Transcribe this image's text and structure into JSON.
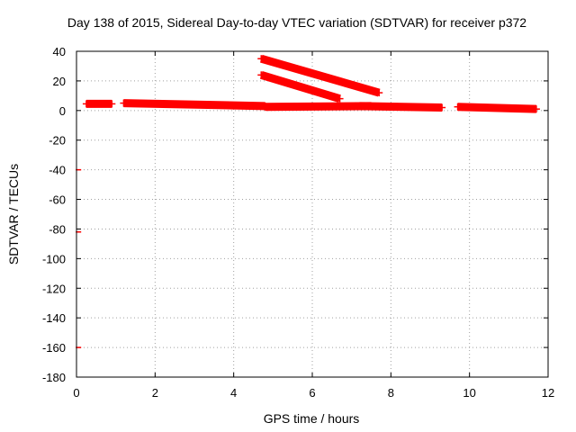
{
  "chart_data": {
    "type": "scatter",
    "title": "Day 138 of 2015, Sidereal Day-to-day VTEC variation (SDTVAR) for receiver p372",
    "xlabel": "GPS time / hours",
    "ylabel": "SDTVAR / TECUs",
    "xlim": [
      0,
      12
    ],
    "ylim": [
      -180,
      40
    ],
    "x_ticks": [
      0,
      2,
      4,
      6,
      8,
      10,
      12
    ],
    "y_ticks": [
      40,
      20,
      0,
      -20,
      -40,
      -60,
      -80,
      -100,
      -120,
      -140,
      -160,
      -180
    ],
    "grid": true,
    "legend": "none",
    "series_color": "#ff0000",
    "marker": "plus",
    "segments": [
      {
        "x": [
          0.25,
          0.9
        ],
        "y": [
          4.5,
          4.5
        ]
      },
      {
        "x": [
          1.2,
          4.8
        ],
        "y": [
          5,
          3
        ]
      },
      {
        "x": [
          4.8,
          7.5
        ],
        "y": [
          2.5,
          3
        ]
      },
      {
        "x": [
          7.2,
          9.3
        ],
        "y": [
          3,
          2
        ]
      },
      {
        "x": [
          9.7,
          11.7
        ],
        "y": [
          2.5,
          1
        ]
      },
      {
        "x": [
          4.7,
          7.7
        ],
        "y": [
          35,
          12
        ]
      },
      {
        "x": [
          4.7,
          6.7
        ],
        "y": [
          24,
          8
        ]
      }
    ],
    "outliers": [
      {
        "x": 0.05,
        "y": -40
      },
      {
        "x": 0.05,
        "y": -82
      },
      {
        "x": 0.05,
        "y": -160
      }
    ]
  }
}
